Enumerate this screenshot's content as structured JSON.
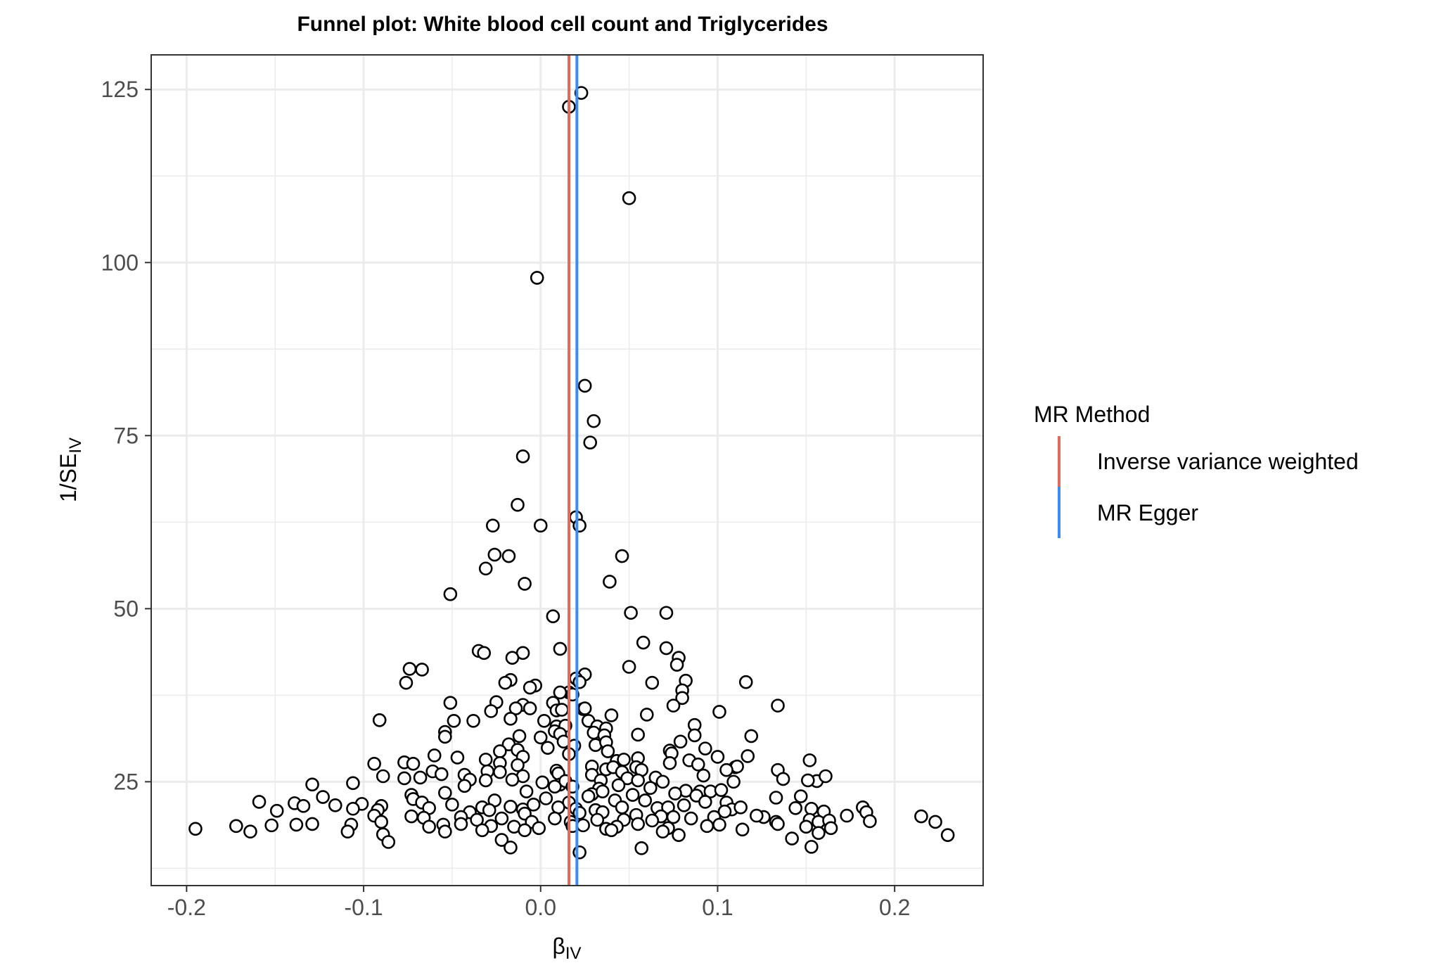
{
  "chart_data": {
    "type": "scatter",
    "title": "Funnel plot: White blood cell count and Triglycerides",
    "xlabel": {
      "base": "β",
      "sub": "IV"
    },
    "ylabel": {
      "base": "1/SE",
      "sub": "IV"
    },
    "xlim": [
      -0.22,
      0.25
    ],
    "ylim": [
      10,
      130
    ],
    "x_ticks": [
      -0.2,
      -0.1,
      0.0,
      0.1,
      0.2
    ],
    "x_tick_labels": [
      "-0.2",
      "-0.1",
      "0.0",
      "0.1",
      "0.2"
    ],
    "y_ticks": [
      25,
      50,
      75,
      100,
      125
    ],
    "y_tick_labels": [
      "25",
      "50",
      "75",
      "100",
      "125"
    ],
    "grid": true,
    "legend": {
      "title": "MR Method",
      "position": "right",
      "entries": [
        {
          "label": "Inverse variance weighted",
          "color": "#F8766D"
        },
        {
          "label": "MR Egger",
          "color": "#00BFC4"
        }
      ]
    },
    "vlines": [
      {
        "method": "Inverse variance weighted",
        "x": 0.016,
        "color": "#E06A5E"
      },
      {
        "method": "MR Egger",
        "x": 0.0205,
        "color": "#3B8BF5"
      }
    ],
    "points": [
      [
        0.023,
        124.5
      ],
      [
        0.016,
        122.5
      ],
      [
        0.05,
        109.3
      ],
      [
        -0.002,
        97.8
      ],
      [
        0.025,
        82.2
      ],
      [
        0.03,
        77.1
      ],
      [
        0.028,
        74.0
      ],
      [
        -0.01,
        72.0
      ],
      [
        -0.013,
        65.0
      ],
      [
        0.02,
        63.2
      ],
      [
        -0.027,
        62.0
      ],
      [
        0.0,
        62.0
      ],
      [
        0.022,
        62.0
      ],
      [
        -0.026,
        57.8
      ],
      [
        -0.018,
        57.6
      ],
      [
        0.046,
        57.6
      ],
      [
        -0.031,
        55.8
      ],
      [
        -0.009,
        53.6
      ],
      [
        0.039,
        53.9
      ],
      [
        -0.051,
        52.1
      ],
      [
        0.007,
        48.9
      ],
      [
        0.051,
        49.4
      ],
      [
        0.071,
        49.4
      ],
      [
        0.058,
        45.1
      ],
      [
        0.011,
        44.2
      ],
      [
        0.071,
        44.3
      ],
      [
        -0.035,
        43.9
      ],
      [
        -0.032,
        43.6
      ],
      [
        -0.01,
        43.6
      ],
      [
        -0.016,
        42.9
      ],
      [
        0.078,
        42.9
      ],
      [
        0.077,
        41.9
      ],
      [
        -0.074,
        41.3
      ],
      [
        -0.067,
        41.2
      ],
      [
        0.05,
        41.6
      ],
      [
        0.025,
        40.5
      ],
      [
        0.02,
        39.9
      ],
      [
        0.022,
        39.4
      ],
      [
        -0.017,
        39.7
      ],
      [
        0.063,
        39.3
      ],
      [
        -0.02,
        39.3
      ],
      [
        -0.076,
        39.3
      ],
      [
        0.116,
        39.4
      ],
      [
        0.082,
        39.6
      ],
      [
        -0.003,
        38.9
      ],
      [
        0.016,
        37.9
      ],
      [
        -0.006,
        38.6
      ],
      [
        0.011,
        37.9
      ],
      [
        0.08,
        38.2
      ],
      [
        0.08,
        37.1
      ],
      [
        0.018,
        37.6
      ],
      [
        -0.051,
        36.4
      ],
      [
        -0.025,
        36.5
      ],
      [
        -0.01,
        36.1
      ],
      [
        -0.014,
        35.6
      ],
      [
        0.007,
        36.4
      ],
      [
        0.009,
        35.3
      ],
      [
        0.012,
        35.4
      ],
      [
        0.024,
        35.5
      ],
      [
        0.025,
        35.6
      ],
      [
        0.075,
        36.0
      ],
      [
        0.134,
        36.0
      ],
      [
        0.101,
        35.1
      ],
      [
        -0.028,
        35.2
      ],
      [
        -0.006,
        35.6
      ],
      [
        0.06,
        34.7
      ],
      [
        0.04,
        34.6
      ],
      [
        -0.091,
        33.9
      ],
      [
        -0.049,
        33.8
      ],
      [
        -0.038,
        33.8
      ],
      [
        -0.017,
        34.1
      ],
      [
        0.002,
        33.8
      ],
      [
        0.009,
        33.0
      ],
      [
        0.014,
        33.1
      ],
      [
        0.027,
        33.8
      ],
      [
        0.032,
        33.0
      ],
      [
        0.037,
        32.7
      ],
      [
        0.087,
        33.2
      ],
      [
        0.008,
        32.3
      ],
      [
        0.011,
        31.9
      ],
      [
        0.03,
        32.1
      ],
      [
        0.036,
        31.7
      ],
      [
        -0.054,
        32.2
      ],
      [
        -0.054,
        31.5
      ],
      [
        -0.012,
        31.6
      ],
      [
        0.0,
        31.4
      ],
      [
        0.055,
        31.8
      ],
      [
        0.087,
        31.7
      ],
      [
        0.119,
        31.6
      ],
      [
        -0.018,
        30.4
      ],
      [
        0.013,
        30.8
      ],
      [
        0.019,
        30.2
      ],
      [
        0.031,
        30.3
      ],
      [
        0.037,
        30.7
      ],
      [
        0.079,
        30.8
      ],
      [
        0.093,
        29.8
      ],
      [
        0.004,
        29.9
      ],
      [
        -0.023,
        29.4
      ],
      [
        -0.013,
        29.6
      ],
      [
        0.038,
        29.4
      ],
      [
        0.073,
        29.5
      ],
      [
        0.074,
        29.1
      ],
      [
        -0.06,
        28.8
      ],
      [
        -0.047,
        28.5
      ],
      [
        -0.031,
        28.2
      ],
      [
        -0.01,
        28.6
      ],
      [
        0.016,
        29.0
      ],
      [
        0.043,
        28.0
      ],
      [
        0.047,
        28.2
      ],
      [
        0.055,
        28.4
      ],
      [
        0.084,
        28.1
      ],
      [
        0.1,
        28.6
      ],
      [
        0.117,
        28.7
      ],
      [
        0.152,
        28.1
      ],
      [
        -0.094,
        27.6
      ],
      [
        -0.077,
        27.8
      ],
      [
        -0.072,
        27.6
      ],
      [
        -0.023,
        27.7
      ],
      [
        -0.013,
        27.4
      ],
      [
        0.029,
        27.2
      ],
      [
        0.037,
        26.8
      ],
      [
        0.041,
        27.1
      ],
      [
        0.054,
        27.1
      ],
      [
        0.073,
        27.7
      ],
      [
        0.089,
        27.5
      ],
      [
        0.11,
        27.1
      ],
      [
        0.111,
        27.2
      ],
      [
        0.134,
        26.7
      ],
      [
        -0.061,
        26.5
      ],
      [
        -0.056,
        26.1
      ],
      [
        -0.043,
        26.0
      ],
      [
        -0.03,
        26.5
      ],
      [
        -0.023,
        26.4
      ],
      [
        -0.01,
        25.8
      ],
      [
        0.009,
        26.6
      ],
      [
        0.01,
        26.2
      ],
      [
        0.029,
        26.0
      ],
      [
        0.046,
        26.4
      ],
      [
        0.057,
        26.7
      ],
      [
        0.065,
        25.6
      ],
      [
        0.092,
        25.9
      ],
      [
        0.105,
        26.7
      ],
      [
        0.137,
        25.4
      ],
      [
        0.156,
        25.1
      ],
      [
        0.161,
        25.8
      ],
      [
        -0.089,
        25.8
      ],
      [
        -0.077,
        25.5
      ],
      [
        -0.068,
        25.6
      ],
      [
        -0.04,
        25.3
      ],
      [
        -0.031,
        25.2
      ],
      [
        -0.016,
        25.3
      ],
      [
        0.001,
        24.9
      ],
      [
        0.011,
        24.6
      ],
      [
        0.014,
        25.1
      ],
      [
        0.034,
        25.2
      ],
      [
        0.049,
        25.5
      ],
      [
        0.055,
        25.2
      ],
      [
        0.069,
        25.0
      ],
      [
        0.109,
        25.0
      ],
      [
        0.151,
        25.2
      ],
      [
        -0.129,
        24.6
      ],
      [
        -0.106,
        24.8
      ],
      [
        -0.043,
        24.4
      ],
      [
        0.008,
        24.3
      ],
      [
        0.018,
        24.3
      ],
      [
        0.033,
        24.0
      ],
      [
        0.044,
        24.5
      ],
      [
        0.062,
        24.1
      ],
      [
        0.082,
        23.7
      ],
      [
        0.09,
        23.6
      ],
      [
        0.096,
        23.6
      ],
      [
        0.102,
        23.8
      ],
      [
        -0.073,
        23.1
      ],
      [
        -0.054,
        23.4
      ],
      [
        -0.008,
        23.6
      ],
      [
        0.029,
        23.2
      ],
      [
        0.035,
        23.6
      ],
      [
        0.052,
        23.1
      ],
      [
        0.076,
        23.3
      ],
      [
        0.088,
        23.0
      ],
      [
        0.133,
        22.7
      ],
      [
        0.147,
        22.9
      ],
      [
        -0.159,
        22.1
      ],
      [
        -0.123,
        22.8
      ],
      [
        -0.072,
        22.5
      ],
      [
        -0.067,
        22.0
      ],
      [
        -0.026,
        22.3
      ],
      [
        0.003,
        22.6
      ],
      [
        0.016,
        22.0
      ],
      [
        0.027,
        22.9
      ],
      [
        0.042,
        22.3
      ],
      [
        0.059,
        22.3
      ],
      [
        0.093,
        22.1
      ],
      [
        0.105,
        22.0
      ],
      [
        -0.139,
        21.9
      ],
      [
        -0.116,
        21.6
      ],
      [
        -0.101,
        21.8
      ],
      [
        -0.09,
        21.5
      ],
      [
        -0.05,
        21.7
      ],
      [
        -0.033,
        21.3
      ],
      [
        -0.017,
        21.4
      ],
      [
        -0.01,
        21.0
      ],
      [
        -0.004,
        21.7
      ],
      [
        0.01,
        21.3
      ],
      [
        0.02,
        21.1
      ],
      [
        0.031,
        20.9
      ],
      [
        0.046,
        21.3
      ],
      [
        0.066,
        21.2
      ],
      [
        0.072,
        21.3
      ],
      [
        0.081,
        21.6
      ],
      [
        0.108,
        21.0
      ],
      [
        0.113,
        21.3
      ],
      [
        0.144,
        21.2
      ],
      [
        0.153,
        21.1
      ],
      [
        0.182,
        21.3
      ],
      [
        -0.134,
        21.5
      ],
      [
        -0.106,
        21.1
      ],
      [
        -0.092,
        20.9
      ],
      [
        -0.063,
        21.2
      ],
      [
        -0.04,
        20.6
      ],
      [
        -0.029,
        20.9
      ],
      [
        -0.009,
        20.4
      ],
      [
        0.022,
        20.5
      ],
      [
        0.035,
        20.6
      ],
      [
        0.054,
        20.2
      ],
      [
        0.068,
        20.0
      ],
      [
        0.075,
        19.9
      ],
      [
        0.104,
        20.7
      ],
      [
        0.126,
        19.9
      ],
      [
        0.16,
        20.7
      ],
      [
        0.173,
        20.1
      ],
      [
        0.184,
        20.6
      ],
      [
        0.215,
        20.0
      ],
      [
        -0.149,
        20.8
      ],
      [
        -0.094,
        20.1
      ],
      [
        -0.073,
        20.0
      ],
      [
        -0.066,
        19.8
      ],
      [
        -0.045,
        19.9
      ],
      [
        -0.036,
        19.5
      ],
      [
        -0.022,
        19.7
      ],
      [
        -0.005,
        19.2
      ],
      [
        0.008,
        19.7
      ],
      [
        0.017,
        19.2
      ],
      [
        0.032,
        19.5
      ],
      [
        0.047,
        19.5
      ],
      [
        0.063,
        19.4
      ],
      [
        0.085,
        19.7
      ],
      [
        0.098,
        19.9
      ],
      [
        0.122,
        20.1
      ],
      [
        0.133,
        19.2
      ],
      [
        0.152,
        19.5
      ],
      [
        0.157,
        19.2
      ],
      [
        0.163,
        19.4
      ],
      [
        0.186,
        19.3
      ],
      [
        0.223,
        19.2
      ],
      [
        -0.172,
        18.6
      ],
      [
        -0.152,
        18.7
      ],
      [
        -0.138,
        18.8
      ],
      [
        -0.129,
        18.9
      ],
      [
        -0.107,
        18.8
      ],
      [
        -0.09,
        19.2
      ],
      [
        -0.063,
        18.5
      ],
      [
        -0.055,
        18.8
      ],
      [
        -0.045,
        18.9
      ],
      [
        -0.028,
        18.6
      ],
      [
        -0.015,
        18.5
      ],
      [
        -0.001,
        18.3
      ],
      [
        0.018,
        18.6
      ],
      [
        0.037,
        18.2
      ],
      [
        0.043,
        18.5
      ],
      [
        0.055,
        18.9
      ],
      [
        0.072,
        18.3
      ],
      [
        0.094,
        18.6
      ],
      [
        0.101,
        18.8
      ],
      [
        0.114,
        18.1
      ],
      [
        0.134,
        18.9
      ],
      [
        0.15,
        18.5
      ],
      [
        0.164,
        18.3
      ],
      [
        -0.195,
        18.2
      ],
      [
        -0.164,
        17.8
      ],
      [
        -0.109,
        17.8
      ],
      [
        -0.089,
        17.4
      ],
      [
        -0.054,
        17.8
      ],
      [
        -0.033,
        18.0
      ],
      [
        -0.009,
        18.0
      ],
      [
        0.024,
        18.7
      ],
      [
        0.04,
        18.0
      ],
      [
        0.069,
        17.8
      ],
      [
        0.078,
        17.3
      ],
      [
        0.157,
        17.6
      ],
      [
        0.23,
        17.3
      ],
      [
        -0.086,
        16.3
      ],
      [
        -0.022,
        16.6
      ],
      [
        0.142,
        16.8
      ],
      [
        -0.017,
        15.5
      ],
      [
        0.057,
        15.4
      ],
      [
        0.153,
        15.6
      ],
      [
        0.022,
        14.8
      ]
    ]
  }
}
